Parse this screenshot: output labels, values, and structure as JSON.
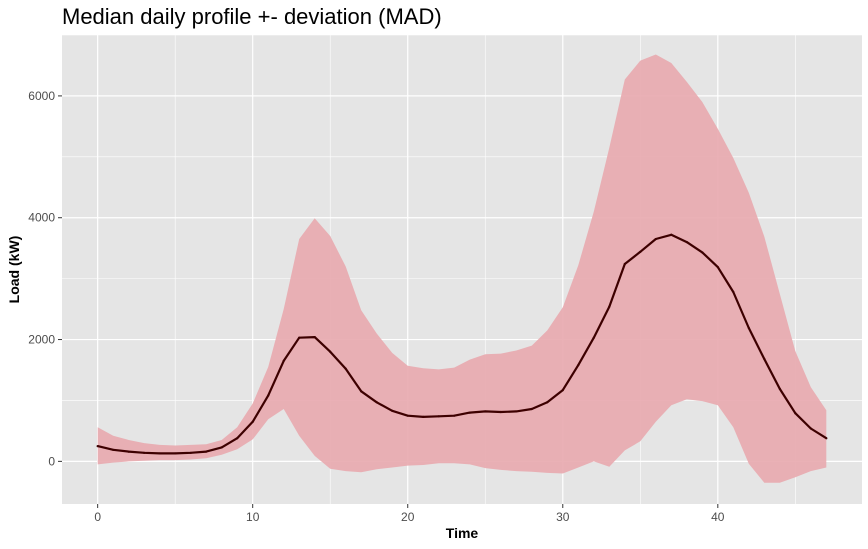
{
  "chart_data": {
    "type": "area",
    "title": "Median daily profile +- deviation (MAD)",
    "xlabel": "Time",
    "ylabel": "Load (kW)",
    "xlim": [
      -2.3,
      49.3
    ],
    "ylim": [
      -700,
      7000
    ],
    "x_ticks": [
      0,
      10,
      20,
      30,
      40
    ],
    "y_ticks": [
      0,
      2000,
      4000,
      6000
    ],
    "grid": true,
    "legend": "none",
    "colors": {
      "panel": "#e5e5e5",
      "grid": "#ffffff",
      "band": "#e8a8ae",
      "line": "#3d0000"
    },
    "x": [
      0,
      1,
      2,
      3,
      4,
      5,
      6,
      7,
      8,
      9,
      10,
      11,
      12,
      13,
      14,
      15,
      16,
      17,
      18,
      19,
      20,
      21,
      22,
      23,
      24,
      25,
      26,
      27,
      28,
      29,
      30,
      31,
      32,
      33,
      34,
      35,
      36,
      37,
      38,
      39,
      40,
      41,
      42,
      43,
      44,
      45,
      46,
      47
    ],
    "series": [
      {
        "role": "median",
        "values": [
          250,
          190,
          160,
          140,
          130,
          130,
          140,
          160,
          230,
          380,
          650,
          1080,
          1650,
          2030,
          2040,
          1800,
          1520,
          1150,
          970,
          830,
          750,
          730,
          740,
          750,
          800,
          820,
          810,
          820,
          860,
          970,
          1170,
          1580,
          2030,
          2540,
          3240,
          3440,
          3650,
          3720,
          3600,
          3430,
          3190,
          2780,
          2190,
          1680,
          1190,
          790,
          540,
          380
        ]
      },
      {
        "role": "upper",
        "values": [
          560,
          420,
          350,
          300,
          270,
          260,
          270,
          280,
          350,
          560,
          950,
          1550,
          2500,
          3650,
          3990,
          3700,
          3200,
          2480,
          2100,
          1780,
          1570,
          1530,
          1510,
          1540,
          1670,
          1760,
          1770,
          1820,
          1900,
          2150,
          2530,
          3220,
          4100,
          5150,
          6270,
          6580,
          6680,
          6540,
          6230,
          5900,
          5460,
          4980,
          4410,
          3690,
          2750,
          1810,
          1220,
          840
        ]
      },
      {
        "role": "lower",
        "values": [
          -50,
          -20,
          0,
          10,
          20,
          20,
          30,
          50,
          110,
          200,
          360,
          690,
          860,
          420,
          90,
          -120,
          -160,
          -180,
          -130,
          -100,
          -70,
          -60,
          -30,
          -30,
          -50,
          -110,
          -140,
          -160,
          -170,
          -190,
          -200,
          -100,
          0,
          -90,
          180,
          330,
          650,
          920,
          1020,
          990,
          920,
          560,
          -40,
          -350,
          -350,
          -260,
          -160,
          -100
        ]
      }
    ]
  }
}
